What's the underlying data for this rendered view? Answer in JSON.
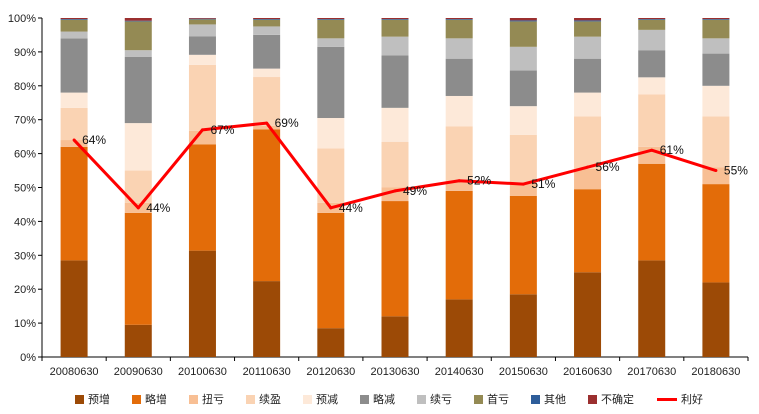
{
  "chart_data": {
    "type": "bar",
    "stacked": true,
    "percent_stacked": true,
    "categories": [
      "20080630",
      "20090630",
      "20100630",
      "20110630",
      "20120630",
      "20130630",
      "20140630",
      "20150630",
      "20160630",
      "20170630",
      "20180630"
    ],
    "yticks": [
      "0%",
      "10%",
      "20%",
      "30%",
      "40%",
      "50%",
      "60%",
      "70%",
      "80%",
      "90%",
      "100%"
    ],
    "ylim": [
      0,
      100
    ],
    "grid": false,
    "legend_position": "bottom",
    "series": [
      {
        "name": "预增",
        "color": "#9c4a06",
        "values": [
          28.5,
          9.5,
          31.5,
          22.5,
          8.5,
          12,
          17,
          18.5,
          25,
          28.5,
          22
        ]
      },
      {
        "name": "略增",
        "color": "#e36c09",
        "values": [
          33.5,
          33,
          31.5,
          45,
          34,
          34,
          32,
          29,
          24.5,
          28.5,
          29
        ]
      },
      {
        "name": "扭亏",
        "color": "#f8bf94",
        "values": [
          2,
          3,
          4,
          1,
          3,
          4,
          3,
          4,
          6,
          5,
          5
        ]
      },
      {
        "name": "续盈",
        "color": "#fad3b3",
        "values": [
          9.5,
          9.5,
          19.5,
          14.5,
          16,
          13.5,
          16,
          14,
          15.5,
          15.5,
          15
        ]
      },
      {
        "name": "预减",
        "color": "#fde9d9",
        "values": [
          4.5,
          14,
          3,
          2.5,
          9,
          10,
          9,
          8.5,
          7,
          5,
          9
        ]
      },
      {
        "name": "略减",
        "color": "#8c8c8c",
        "values": [
          16,
          19.5,
          5.5,
          10,
          21,
          15.5,
          11,
          10.5,
          10,
          8,
          9.5
        ]
      },
      {
        "name": "续亏",
        "color": "#bfbfbf",
        "values": [
          2,
          2,
          3.5,
          2.5,
          2.5,
          5.5,
          6,
          7,
          6.5,
          6,
          4.5
        ]
      },
      {
        "name": "首亏",
        "color": "#948a54",
        "values": [
          3.5,
          8.5,
          1.5,
          2,
          5.5,
          5,
          5.5,
          7.5,
          4.5,
          3,
          5.5
        ]
      },
      {
        "name": "其他",
        "color": "#2e5d9a",
        "values": [
          0.2,
          0.2,
          0.2,
          0.2,
          0.2,
          0.2,
          0.2,
          0.3,
          0.3,
          0.2,
          0.2
        ]
      },
      {
        "name": "不确定",
        "color": "#9b2f2f",
        "values": [
          0.3,
          0.8,
          0.2,
          0.3,
          0.3,
          0.3,
          0.3,
          0.7,
          0.7,
          0.3,
          0.3
        ]
      }
    ],
    "line": {
      "name": "利好",
      "color": "#ff0000",
      "values": [
        64,
        44,
        67,
        69,
        44,
        49,
        52,
        51,
        56,
        61,
        55
      ],
      "labels": [
        "64%",
        "44%",
        "67%",
        "69%",
        "44%",
        "49%",
        "52%",
        "51%",
        "56%",
        "61%",
        "55%"
      ]
    }
  }
}
